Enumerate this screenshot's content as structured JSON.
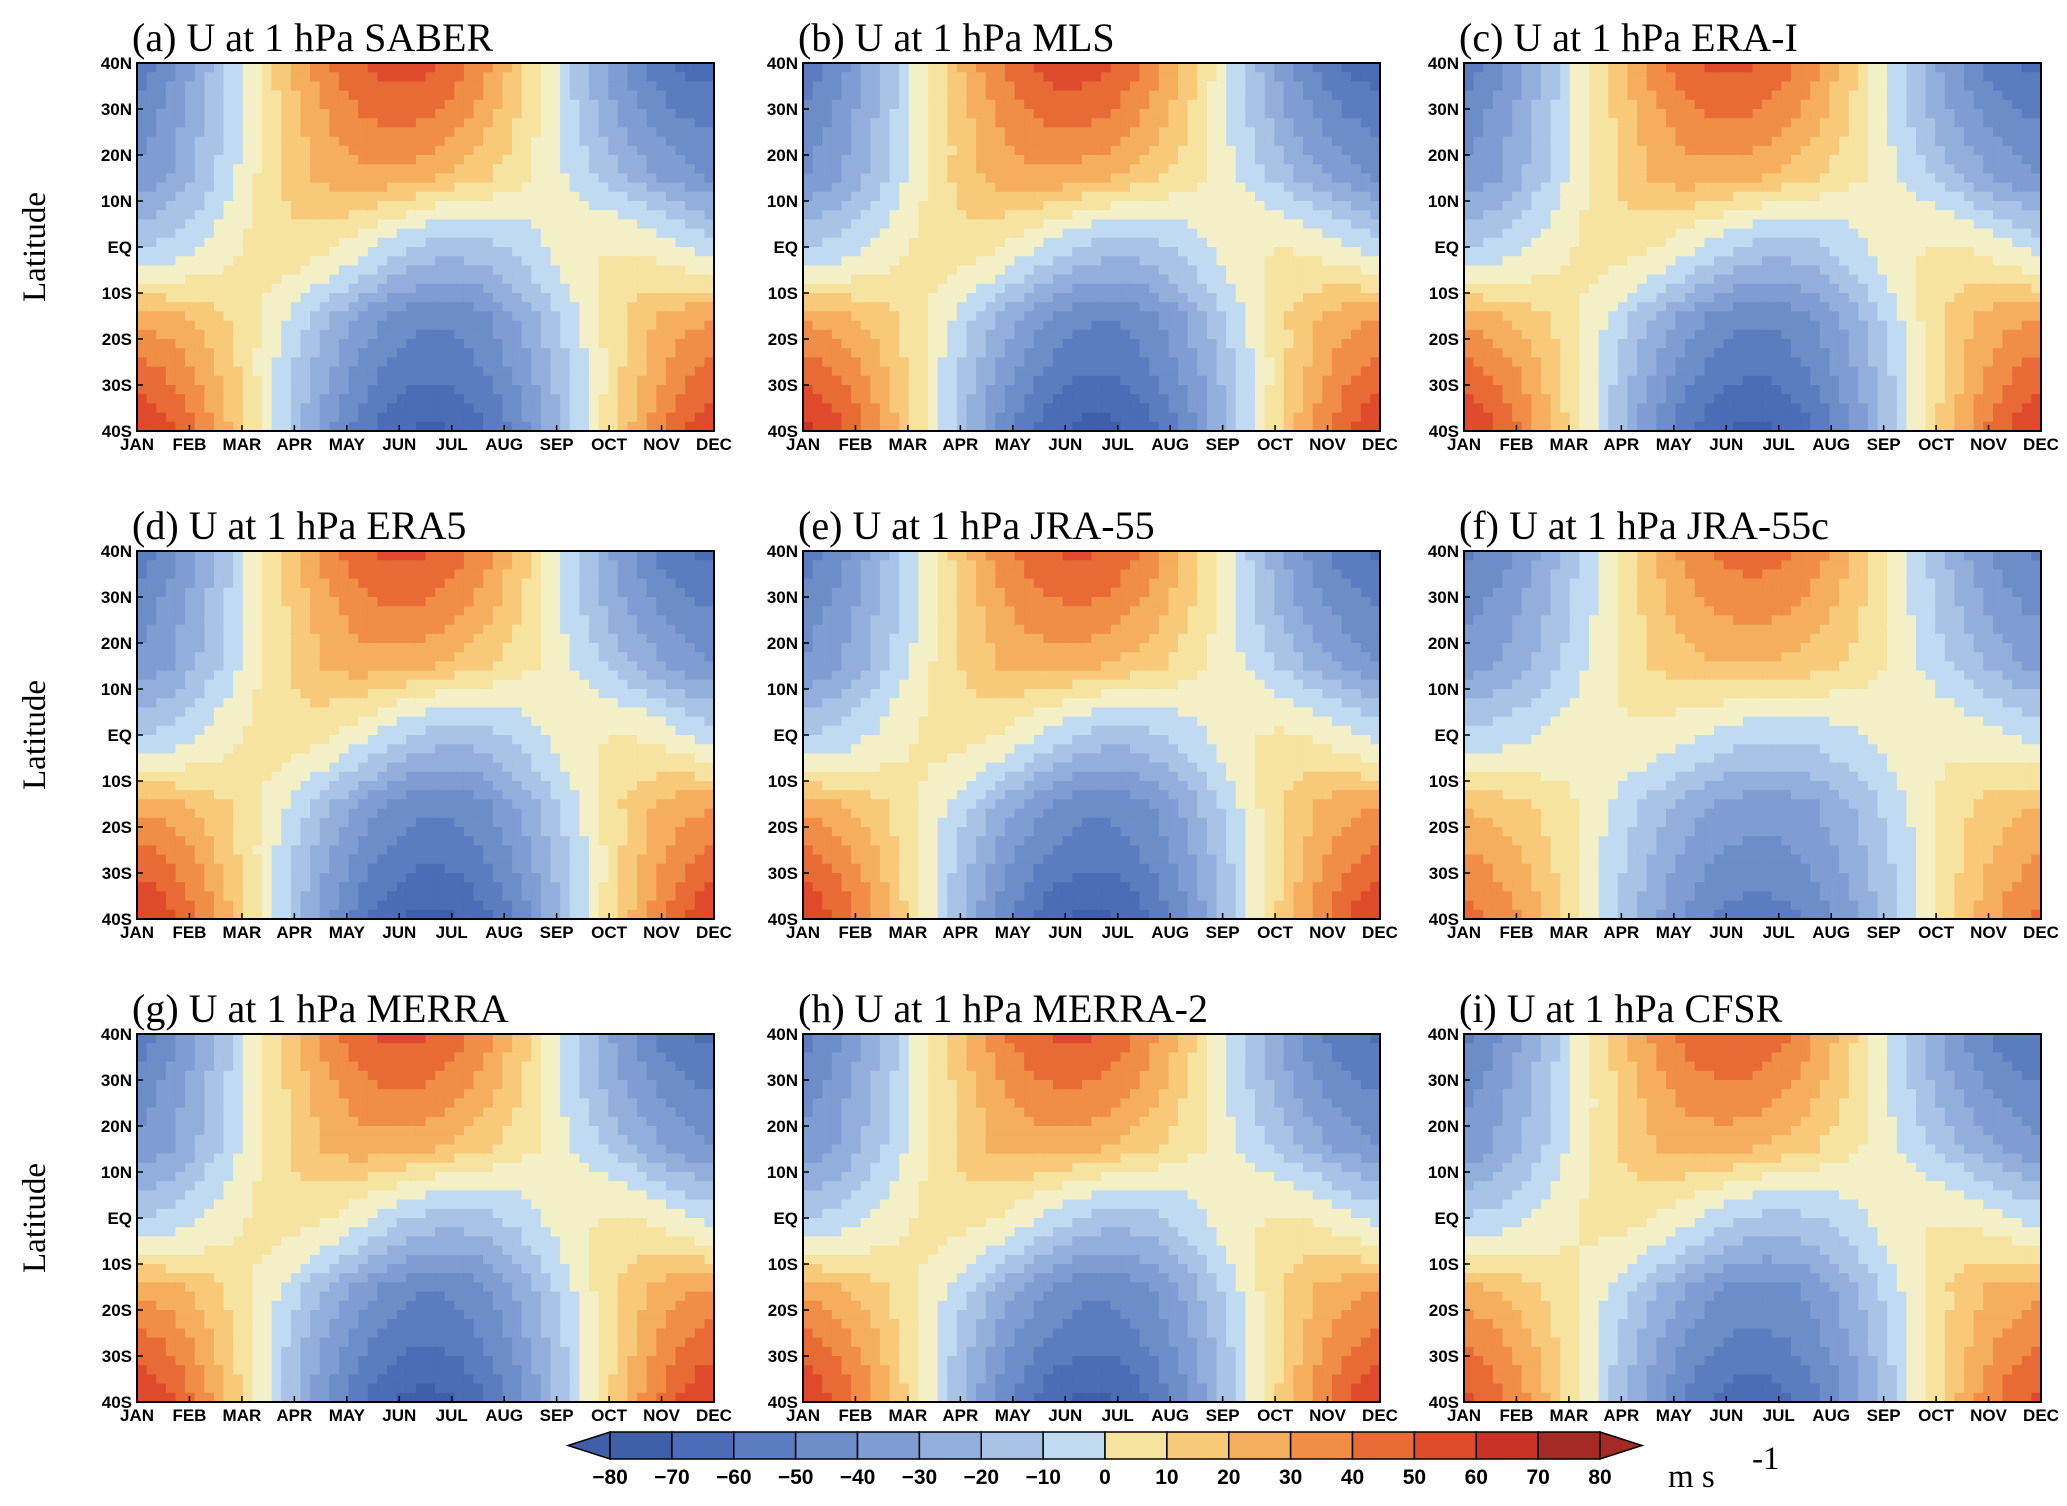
{
  "chart_data": {
    "type": "heatmap",
    "panels": [
      {
        "title": "(a) U at 1 hPa SABER",
        "params": {
          "ampS": 72,
          "ampN": 65,
          "tS": 5.6,
          "tN": 5.0,
          "tW": 0.0,
          "eq": 1.0
        }
      },
      {
        "title": "(b) U at 1 hPa MLS",
        "params": {
          "ampS": 74,
          "ampN": 66,
          "tS": 5.6,
          "tN": 5.1,
          "tW": 0.0,
          "eq": 1.0
        }
      },
      {
        "title": "(c) U at 1 hPa ERA-I",
        "params": {
          "ampS": 73,
          "ampN": 63,
          "tS": 5.5,
          "tN": 5.1,
          "tW": 0.0,
          "eq": 1.0
        }
      },
      {
        "title": "(d) U at 1 hPa ERA5",
        "params": {
          "ampS": 73,
          "ampN": 63,
          "tS": 5.6,
          "tN": 5.1,
          "tW": 0.0,
          "eq": 1.0
        }
      },
      {
        "title": "(e) U at 1 hPa JRA-55",
        "params": {
          "ampS": 72,
          "ampN": 62,
          "tS": 5.5,
          "tN": 5.2,
          "tW": 0.0,
          "eq": 1.0
        }
      },
      {
        "title": "(f) U at 1 hPa JRA-55c",
        "params": {
          "ampS": 55,
          "ampN": 55,
          "tS": 5.6,
          "tN": 5.5,
          "tW": 0.0,
          "eq": 0.6
        }
      },
      {
        "title": "(g) U at 1 hPa MERRA",
        "params": {
          "ampS": 74,
          "ampN": 63,
          "tS": 5.5,
          "tN": 5.1,
          "tW": 0.0,
          "eq": 1.0
        }
      },
      {
        "title": "(h) U at 1 hPa MERRA-2",
        "params": {
          "ampS": 72,
          "ampN": 62,
          "tS": 5.5,
          "tN": 5.1,
          "tW": 0.0,
          "eq": 1.0
        }
      },
      {
        "title": "(i) U at 1 hPa CFSR",
        "params": {
          "ampS": 66,
          "ampN": 60,
          "tS": 5.5,
          "tN": 5.1,
          "tW": 0.0,
          "eq": 0.9
        }
      }
    ],
    "x_ticks": [
      "JAN",
      "FEB",
      "MAR",
      "APR",
      "MAY",
      "JUN",
      "JUL",
      "AUG",
      "SEP",
      "OCT",
      "NOV",
      "DEC"
    ],
    "y_ticks": [
      "40N",
      "30N",
      "20N",
      "10N",
      "EQ",
      "10S",
      "20S",
      "30S",
      "40S"
    ],
    "y_values": [
      40,
      30,
      20,
      10,
      0,
      -10,
      -20,
      -30,
      -40
    ],
    "ylabel": "Latitude",
    "colorbar": {
      "levels": [
        -80,
        -70,
        -60,
        -50,
        -40,
        -30,
        -20,
        -10,
        0,
        10,
        20,
        30,
        40,
        50,
        60,
        70,
        80
      ],
      "colors": [
        "#3f5fa8",
        "#4b6db5",
        "#5b7dc0",
        "#6d8dc9",
        "#7f9dd2",
        "#92aedb",
        "#a8c3e6",
        "#c0daf1",
        "#f3f0c8",
        "#f6e3a0",
        "#f7c978",
        "#f5ad5e",
        "#f08d46",
        "#e86b36",
        "#de4a2b",
        "#c93224",
        "#a62a24"
      ],
      "unit": "m s",
      "unit_sup": "-1"
    }
  }
}
